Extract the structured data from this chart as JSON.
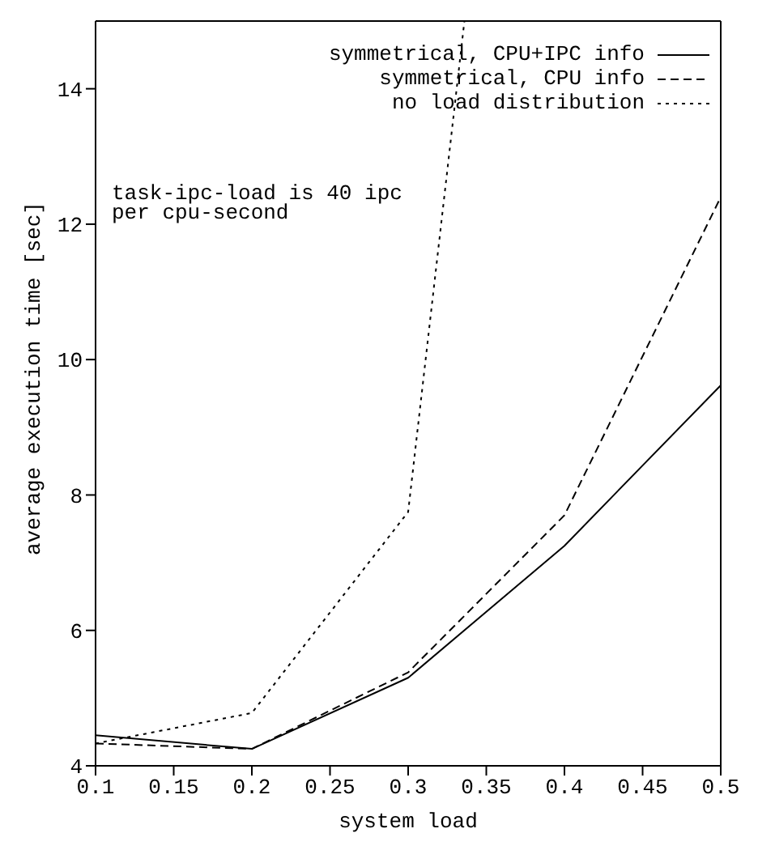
{
  "chart_data": {
    "type": "line",
    "xlabel": "system load",
    "ylabel": "average execution time [sec]",
    "x": [
      0.1,
      0.2,
      0.3,
      0.4,
      0.5
    ],
    "xlim": [
      0.1,
      0.5
    ],
    "xticks": [
      0.1,
      0.15,
      0.2,
      0.25,
      0.3,
      0.35,
      0.4,
      0.45,
      0.5
    ],
    "ylim": [
      4,
      15
    ],
    "yticks": [
      4,
      6,
      8,
      10,
      12,
      14
    ],
    "grid": false,
    "legend": "top right",
    "marker": "none",
    "annotations": [
      "task-ipc-load is 40 ipc\nper cpu-second"
    ],
    "series": [
      {
        "name": "symmetrical, CPU+IPC info",
        "color": "#000000",
        "line_style": "solid",
        "values": [
          4.45,
          4.25,
          5.3,
          7.25,
          9.62
        ]
      },
      {
        "name": "symmetrical, CPU info",
        "color": "#000000",
        "line_style": "dashed",
        "values": [
          4.33,
          4.25,
          5.38,
          7.7,
          12.4
        ]
      },
      {
        "name": "no load distribution",
        "color": "#000000",
        "line_style": "dotted",
        "x": [
          0.1,
          0.2,
          0.3,
          0.336
        ],
        "values": [
          4.33,
          4.78,
          7.75,
          15
        ]
      }
    ]
  }
}
